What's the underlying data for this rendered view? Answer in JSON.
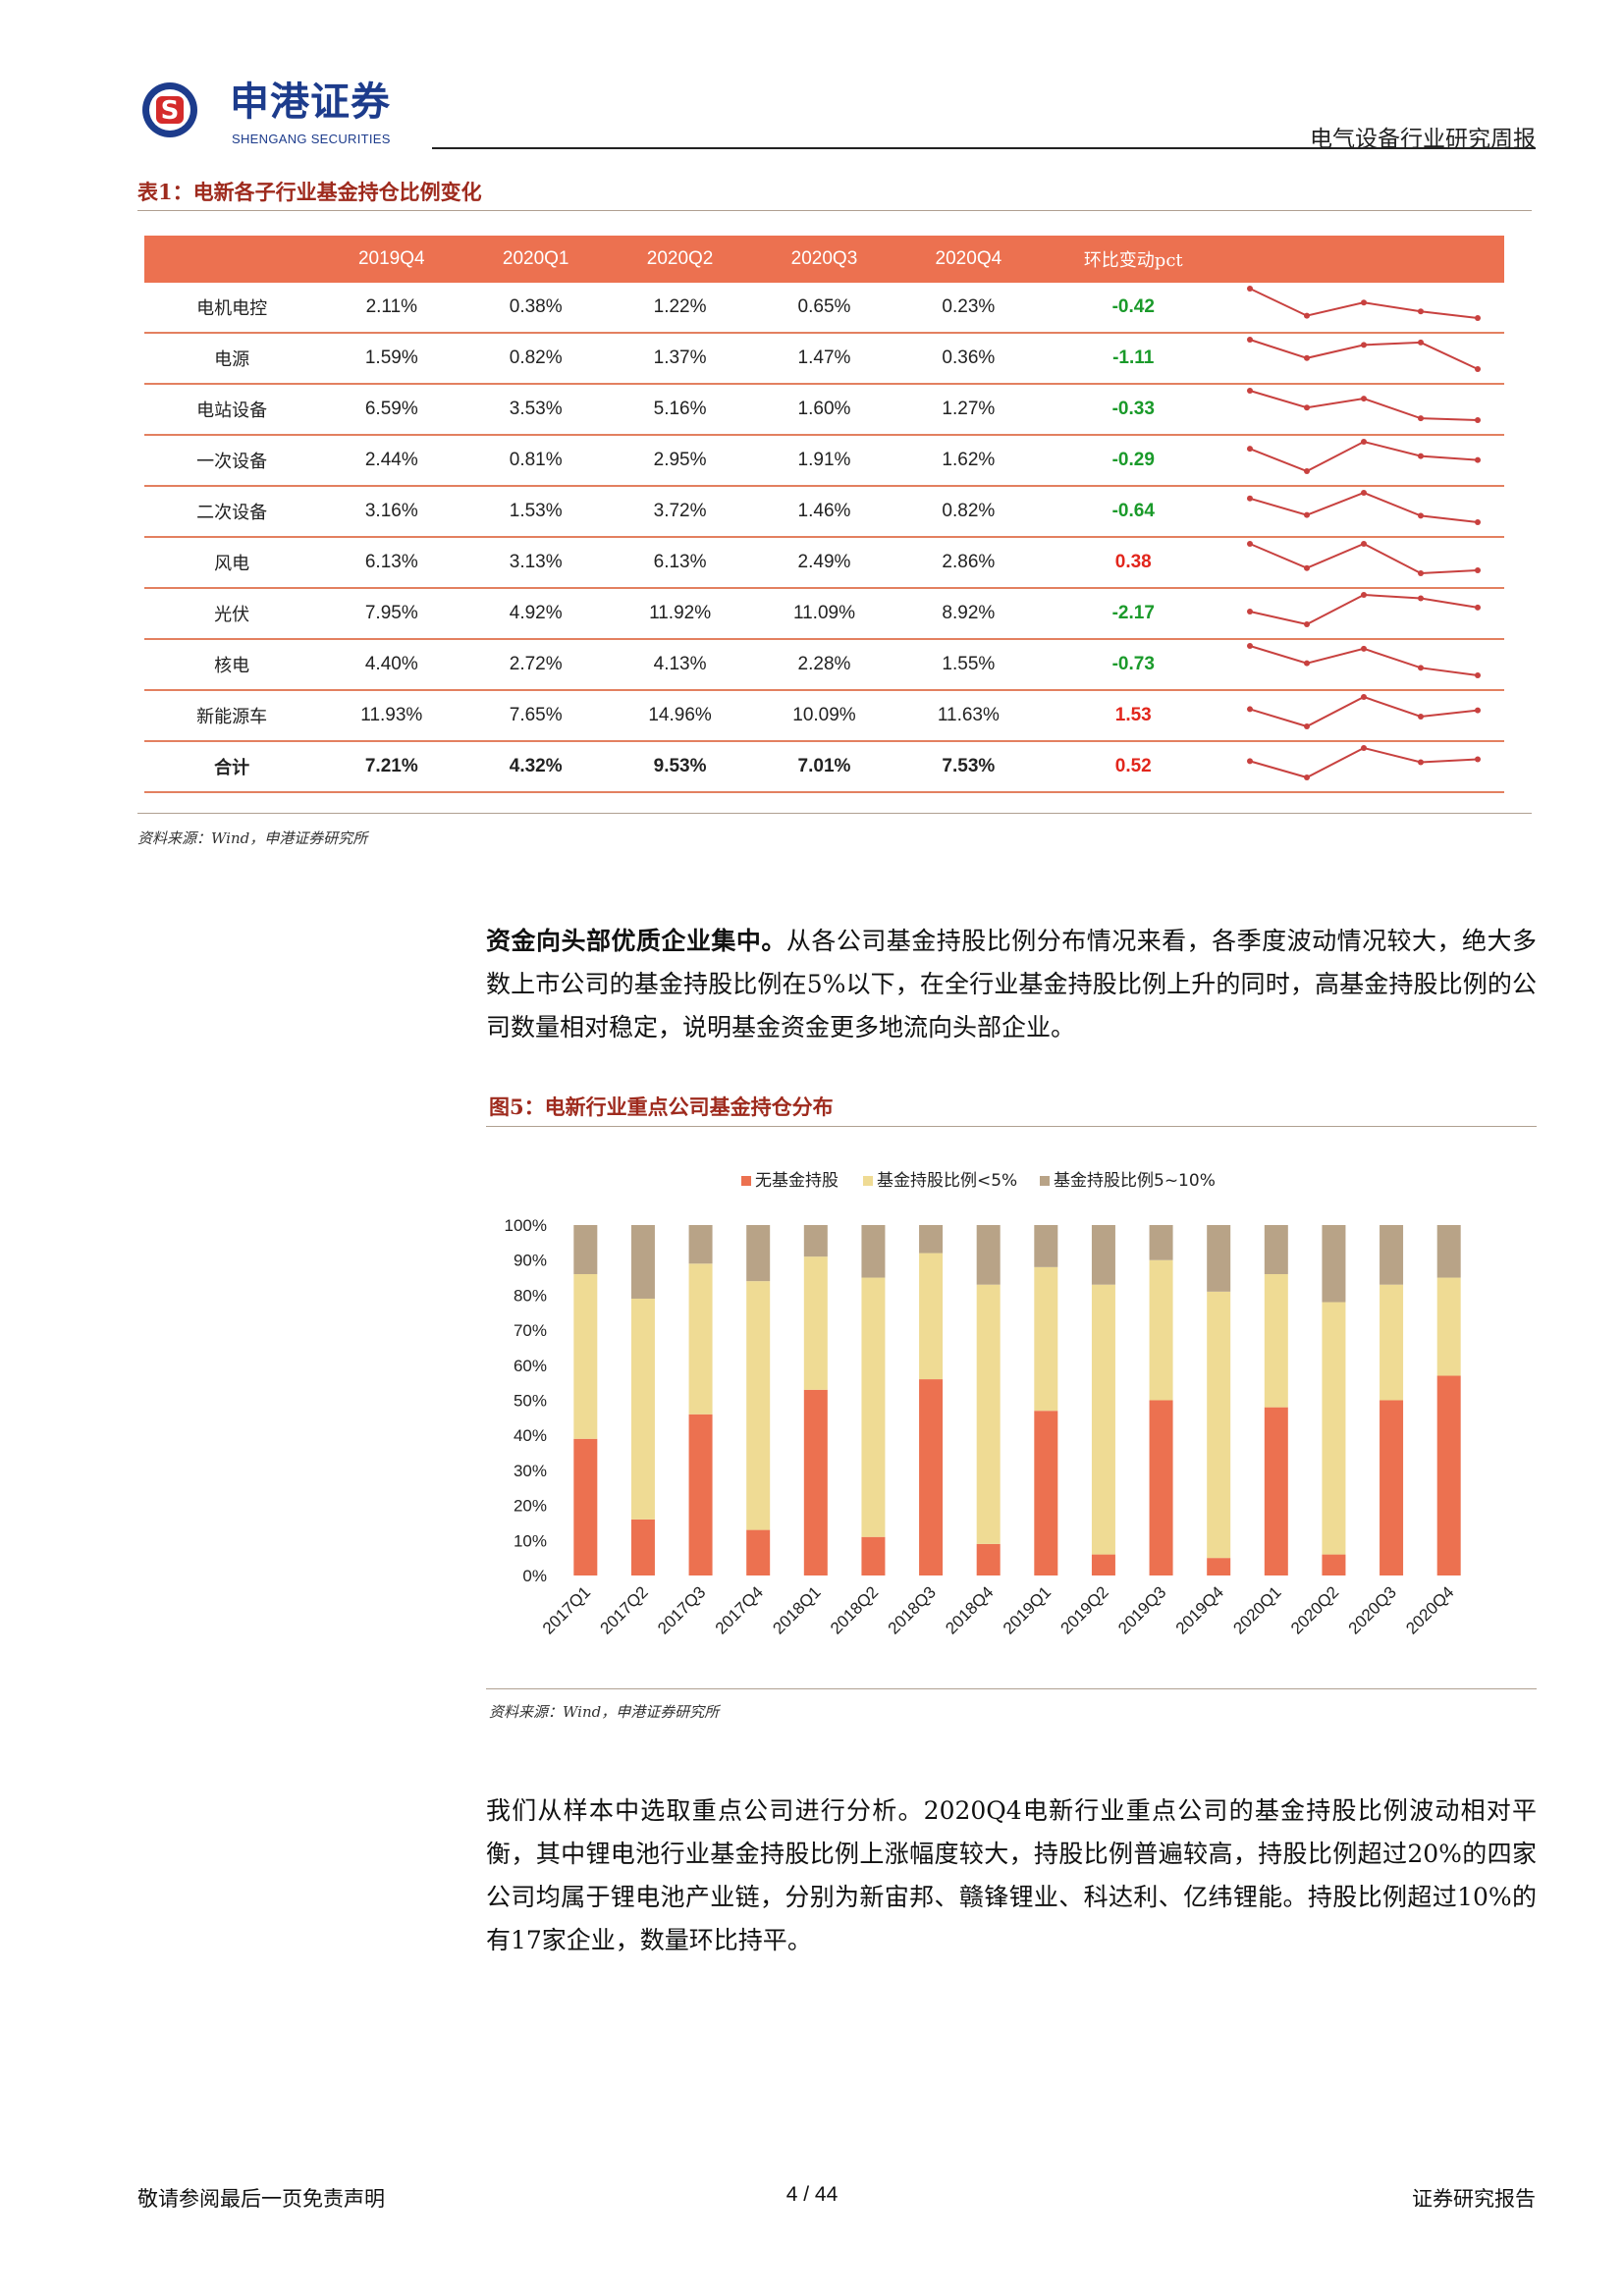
{
  "header": {
    "company_name": "申港证券",
    "company_name_en": "SHENGANG SECURITIES",
    "report_type": "电气设备行业研究周报"
  },
  "table": {
    "caption": "表1：电新各子行业基金持仓比例变化",
    "columns": [
      "",
      "2019Q4",
      "2020Q1",
      "2020Q2",
      "2020Q3",
      "2020Q4",
      "环比变动pct",
      ""
    ],
    "rows": [
      {
        "name": "电机电控",
        "values": [
          "2.11%",
          "0.38%",
          "1.22%",
          "0.65%",
          "0.23%"
        ],
        "change": "-0.42",
        "trend": [
          2.11,
          0.38,
          1.22,
          0.65,
          0.23
        ]
      },
      {
        "name": "电源",
        "values": [
          "1.59%",
          "0.82%",
          "1.37%",
          "1.47%",
          "0.36%"
        ],
        "change": "-1.11",
        "trend": [
          1.59,
          0.82,
          1.37,
          1.47,
          0.36
        ]
      },
      {
        "name": "电站设备",
        "values": [
          "6.59%",
          "3.53%",
          "5.16%",
          "1.60%",
          "1.27%"
        ],
        "change": "-0.33",
        "trend": [
          6.59,
          3.53,
          5.16,
          1.6,
          1.27
        ]
      },
      {
        "name": "一次设备",
        "values": [
          "2.44%",
          "0.81%",
          "2.95%",
          "1.91%",
          "1.62%"
        ],
        "change": "-0.29",
        "trend": [
          2.44,
          0.81,
          2.95,
          1.91,
          1.62
        ]
      },
      {
        "name": "二次设备",
        "values": [
          "3.16%",
          "1.53%",
          "3.72%",
          "1.46%",
          "0.82%"
        ],
        "change": "-0.64",
        "trend": [
          3.16,
          1.53,
          3.72,
          1.46,
          0.82
        ]
      },
      {
        "name": "风电",
        "values": [
          "6.13%",
          "3.13%",
          "6.13%",
          "2.49%",
          "2.86%"
        ],
        "change": "0.38",
        "trend": [
          6.13,
          3.13,
          6.13,
          2.49,
          2.86
        ]
      },
      {
        "name": "光伏",
        "values": [
          "7.95%",
          "4.92%",
          "11.92%",
          "11.09%",
          "8.92%"
        ],
        "change": "-2.17",
        "trend": [
          7.95,
          4.92,
          11.92,
          11.09,
          8.92
        ]
      },
      {
        "name": "核电",
        "values": [
          "4.40%",
          "2.72%",
          "4.13%",
          "2.28%",
          "1.55%"
        ],
        "change": "-0.73",
        "trend": [
          4.4,
          2.72,
          4.13,
          2.28,
          1.55
        ]
      },
      {
        "name": "新能源车",
        "values": [
          "11.93%",
          "7.65%",
          "14.96%",
          "10.09%",
          "11.63%"
        ],
        "change": "1.53",
        "trend": [
          11.93,
          7.65,
          14.96,
          10.09,
          11.63
        ]
      },
      {
        "name": "合计",
        "values": [
          "7.21%",
          "4.32%",
          "9.53%",
          "7.01%",
          "7.53%"
        ],
        "change": "0.52",
        "trend": [
          7.21,
          4.32,
          9.53,
          7.01,
          7.53
        ],
        "total": true
      }
    ],
    "source": "资料来源：Wind，申港证券研究所"
  },
  "paragraph1": {
    "lead": "资金向头部优质企业集中。",
    "body": "从各公司基金持股比例分布情况来看，各季度波动情况较大，绝大多数上市公司的基金持股比例在5%以下，在全行业基金持股比例上升的同时，高基金持股比例的公司数量相对稳定，说明基金资金更多地流向头部企业。"
  },
  "chart_caption": "图5：电新行业重点公司基金持仓分布",
  "chart_source": "资料来源：Wind，申港证券研究所",
  "chart_data": {
    "type": "bar",
    "stacked": true,
    "title": "",
    "categories": [
      "2017Q1",
      "2017Q2",
      "2017Q3",
      "2017Q4",
      "2018Q1",
      "2018Q2",
      "2018Q3",
      "2018Q4",
      "2019Q1",
      "2019Q2",
      "2019Q3",
      "2019Q4",
      "2020Q1",
      "2020Q2",
      "2020Q3",
      "2020Q4"
    ],
    "series": [
      {
        "name": "无基金持股",
        "color": "#ec7150",
        "values": [
          39,
          16,
          46,
          13,
          53,
          11,
          56,
          9,
          47,
          6,
          50,
          5,
          48,
          6,
          50,
          57
        ]
      },
      {
        "name": "基金持股比例<5%",
        "color": "#efdb94",
        "values": [
          47,
          63,
          43,
          71,
          38,
          74,
          36,
          74,
          41,
          77,
          40,
          76,
          38,
          72,
          33,
          28
        ]
      },
      {
        "name": "基金持股比例5~10%",
        "color": "#b8a387",
        "values": [
          14,
          21,
          11,
          16,
          9,
          15,
          8,
          17,
          12,
          17,
          10,
          19,
          14,
          22,
          17,
          15
        ]
      }
    ],
    "yticks": [
      "0%",
      "10%",
      "20%",
      "30%",
      "40%",
      "50%",
      "60%",
      "70%",
      "80%",
      "90%",
      "100%"
    ],
    "ylim": [
      0,
      100
    ],
    "legend": "top-center"
  },
  "paragraph2": "我们从样本中选取重点公司进行分析。2020Q4电新行业重点公司的基金持股比例波动相对平衡，其中锂电池行业基金持股比例上涨幅度较大，持股比例普遍较高，持股比例超过20%的四家公司均属于锂电池产业链，分别为新宙邦、赣锋锂业、科达利、亿纬锂能。持股比例超过10%的有17家企业，数量环比持平。",
  "footer": {
    "left": "敬请参阅最后一页免责声明",
    "page": "4 / 44",
    "right": "证券研究报告"
  },
  "colors": {
    "accent": "#ec7150",
    "caption": "#9e2a1d",
    "negative": "#1a9a2a",
    "positive": "#e2261c",
    "brand": "#1d3c8c"
  }
}
